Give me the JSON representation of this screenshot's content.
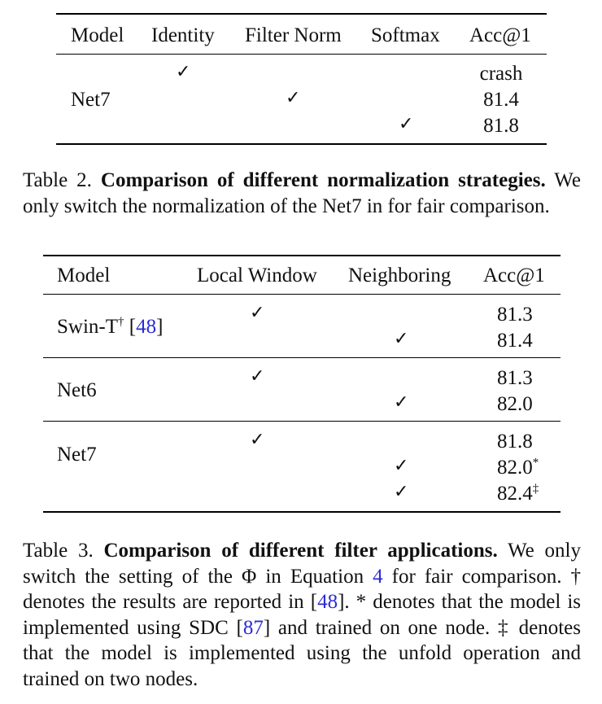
{
  "table2": {
    "headers": [
      "Model",
      "Identity",
      "Filter Norm",
      "Softmax",
      "Acc@1"
    ],
    "model": "Net7",
    "check_mark": "✓",
    "rows": [
      {
        "acc": "crash",
        "check_col": "Identity"
      },
      {
        "acc": "81.4",
        "check_col": "Filter Norm"
      },
      {
        "acc": "81.8",
        "check_col": "Softmax"
      }
    ],
    "caption": {
      "label": "Table 2.",
      "title": "Comparison of different normalization strategies.",
      "text": "We only switch the normalization of the Net7 in for fair comparison."
    }
  },
  "table3": {
    "headers": [
      "Model",
      "Local Window",
      "Neighboring",
      "Acc@1"
    ],
    "groups": [
      {
        "model": "Swin-T",
        "model_sup": "†",
        "model_ref": "48",
        "accs": [
          "81.3",
          "81.4"
        ],
        "acc_sups": [
          "",
          ""
        ]
      },
      {
        "model": "Net6",
        "accs": [
          "81.3",
          "82.0"
        ],
        "acc_sups": [
          "",
          ""
        ]
      },
      {
        "model": "Net7",
        "accs": [
          "81.8",
          "82.0",
          "82.4"
        ],
        "acc_sups": [
          "",
          "*",
          "‡"
        ]
      }
    ],
    "caption": {
      "label": "Table 3.",
      "title": "Comparison of different filter applications.",
      "t1": "We only switch the setting of the Φ in Equation",
      "eq_ref": "4",
      "t2": "for fair comparison. † denotes the results are reported in [",
      "ref1": "48",
      "t3": "]. * denotes that the model is implemented using SDC [",
      "ref2": "87",
      "t4": "] and trained on one node. ‡ denotes that the model is implemented using the unfold operation and trained on two nodes."
    }
  }
}
